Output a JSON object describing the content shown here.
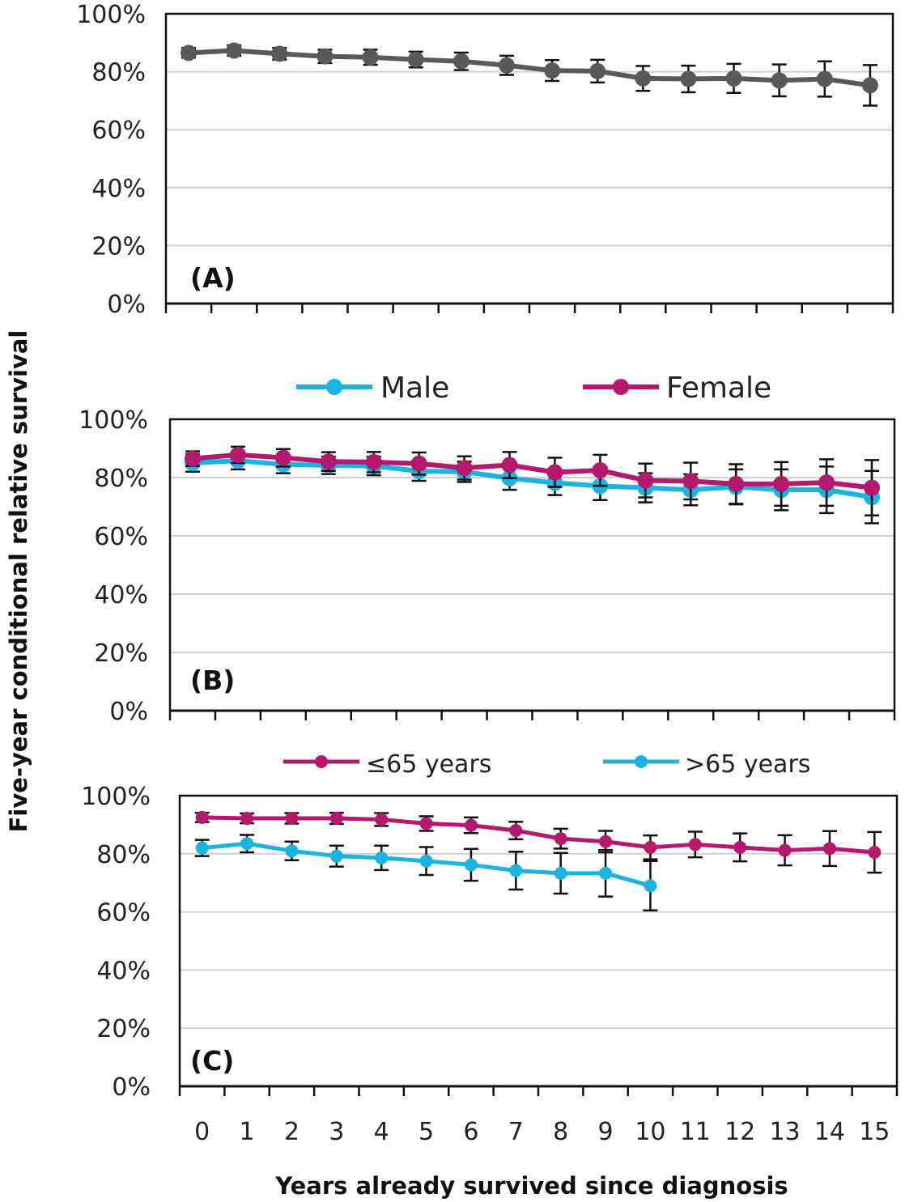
{
  "ylabel": "Five-year conditional relative survival",
  "xlabel": "Years already survived since diagnosis",
  "colors": {
    "gray": "#595959",
    "cyan": "#1bb3e0",
    "magenta": "#b4196d"
  },
  "chart_data": [
    {
      "type": "line",
      "panel_label": "(A)",
      "x": [
        0,
        1,
        2,
        3,
        4,
        5,
        6,
        7,
        8,
        9,
        10,
        11,
        12,
        13,
        14,
        15
      ],
      "y_tick_labels": [
        "0%",
        "20%",
        "40%",
        "60%",
        "80%",
        "100%"
      ],
      "ylim": [
        0,
        100
      ],
      "grid": true,
      "legend": [],
      "series": [
        {
          "name": "",
          "color": "#595959",
          "values": [
            86.5,
            87.3,
            86.2,
            85.3,
            85.0,
            84.2,
            83.6,
            82.2,
            80.4,
            80.2,
            77.7,
            77.5,
            77.7,
            77.0,
            77.5,
            75.3
          ],
          "err": [
            1.7,
            1.8,
            2.0,
            2.3,
            2.6,
            2.7,
            3.0,
            3.3,
            3.6,
            3.9,
            4.3,
            4.6,
            5.0,
            5.5,
            6.1,
            7.0
          ]
        }
      ]
    },
    {
      "type": "line",
      "panel_label": "(B)",
      "x": [
        0,
        1,
        2,
        3,
        4,
        5,
        6,
        7,
        8,
        9,
        10,
        11,
        12,
        13,
        14,
        15
      ],
      "y_tick_labels": [
        "0%",
        "20%",
        "40%",
        "60%",
        "80%",
        "100%"
      ],
      "ylim": [
        0,
        100
      ],
      "grid": true,
      "legend": [
        "Male",
        "Female"
      ],
      "legend_position": "top",
      "series": [
        {
          "name": "Male",
          "color": "#1bb3e0",
          "values": [
            85.0,
            85.8,
            84.5,
            84.2,
            84.0,
            82.2,
            82.0,
            79.8,
            78.2,
            77.1,
            76.5,
            75.8,
            76.8,
            75.8,
            75.8,
            73.3
          ],
          "err": [
            3.0,
            3.0,
            3.0,
            3.0,
            3.2,
            3.3,
            3.5,
            4.0,
            4.2,
            4.8,
            5.0,
            5.3,
            6.0,
            7.0,
            8.0,
            9.0
          ]
        },
        {
          "name": "Female",
          "color": "#b4196d",
          "values": [
            86.5,
            87.8,
            86.8,
            85.5,
            85.3,
            84.8,
            83.3,
            84.3,
            81.8,
            82.5,
            79.0,
            78.8,
            77.8,
            77.8,
            78.3,
            76.5
          ],
          "err": [
            2.5,
            2.8,
            3.0,
            3.2,
            3.5,
            3.8,
            4.0,
            4.5,
            5.0,
            5.3,
            5.8,
            6.3,
            6.8,
            7.5,
            8.0,
            9.5
          ]
        }
      ]
    },
    {
      "type": "line",
      "panel_label": "(C)",
      "x": [
        0,
        1,
        2,
        3,
        4,
        5,
        6,
        7,
        8,
        9,
        10,
        11,
        12,
        13,
        14,
        15
      ],
      "x_tick_labels": [
        "0",
        "1",
        "2",
        "3",
        "4",
        "5",
        "6",
        "7",
        "8",
        "9",
        "10",
        "11",
        "12",
        "13",
        "14",
        "15"
      ],
      "y_tick_labels": [
        "0%",
        "20%",
        "40%",
        "60%",
        "80%",
        "100%"
      ],
      "ylim": [
        0,
        100
      ],
      "grid": true,
      "legend": [
        "≤65 years",
        ">65 years"
      ],
      "legend_position": "top",
      "series": [
        {
          "name": "≤65 years",
          "color": "#b4196d",
          "values": [
            92.5,
            92.2,
            92.2,
            92.2,
            91.8,
            90.4,
            89.8,
            88.0,
            85.2,
            84.2,
            82.2,
            83.2,
            82.2,
            81.2,
            81.8,
            80.5
          ],
          "err": [
            1.6,
            1.7,
            1.8,
            1.9,
            2.2,
            2.5,
            2.7,
            3.0,
            3.4,
            3.7,
            4.1,
            4.4,
            4.8,
            5.2,
            6.0,
            7.0
          ]
        },
        {
          "name": ">65 years",
          "color": "#1bb3e0",
          "values": [
            82.0,
            83.5,
            81.0,
            79.2,
            78.6,
            77.5,
            76.2,
            74.2,
            73.3,
            73.3,
            69.0,
            null,
            null,
            null,
            null,
            null
          ],
          "err": [
            2.8,
            3.0,
            3.2,
            3.6,
            4.2,
            4.8,
            5.5,
            6.5,
            7.0,
            8.0,
            8.5,
            null,
            null,
            null,
            null,
            null
          ]
        }
      ]
    }
  ]
}
